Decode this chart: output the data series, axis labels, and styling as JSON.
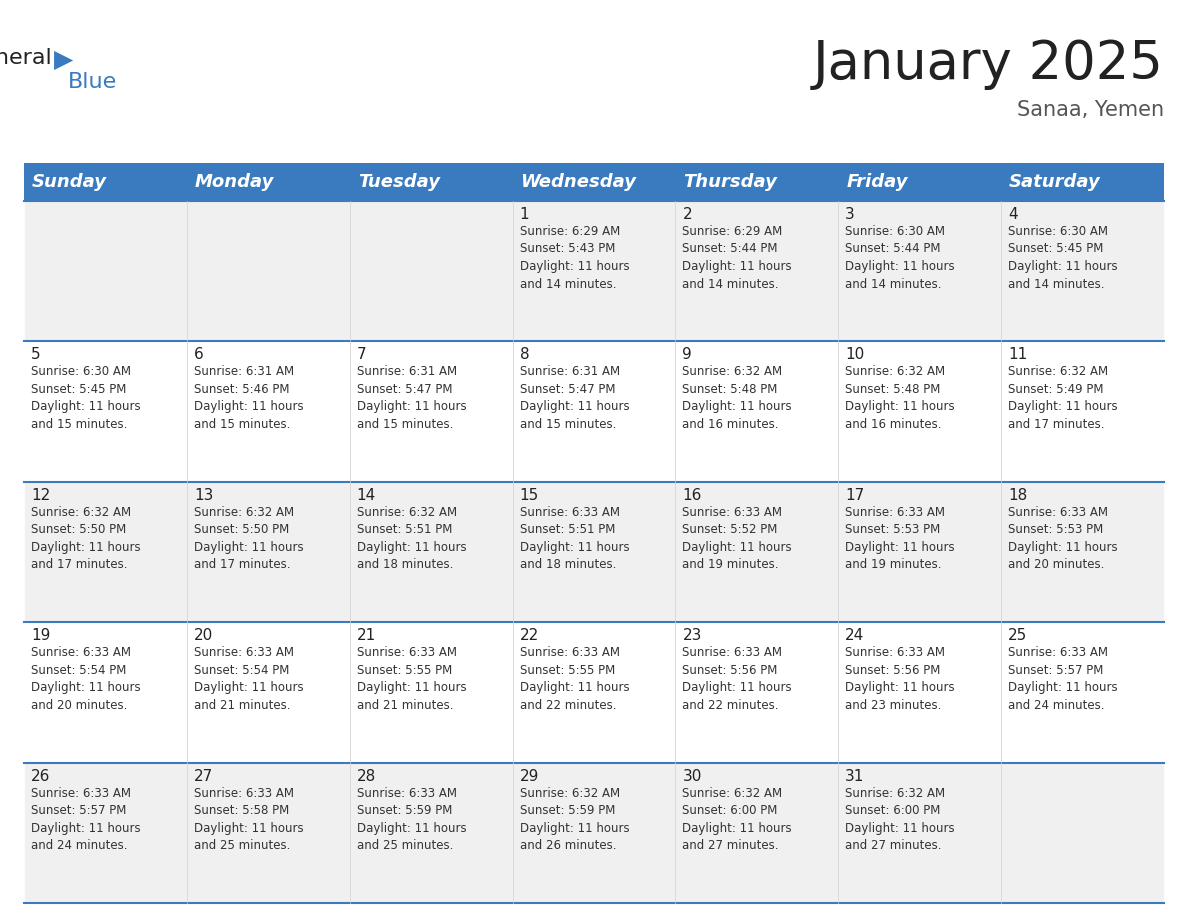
{
  "title": "January 2025",
  "subtitle": "Sanaa, Yemen",
  "header_color": "#3a7abf",
  "header_text_color": "#ffffff",
  "cell_bg_even": "#f0f0f0",
  "cell_bg_odd": "#ffffff",
  "border_color": "#3a7abf",
  "text_color": "#222222",
  "info_color": "#333333",
  "day_names": [
    "Sunday",
    "Monday",
    "Tuesday",
    "Wednesday",
    "Thursday",
    "Friday",
    "Saturday"
  ],
  "title_fontsize": 38,
  "subtitle_fontsize": 15,
  "header_fontsize": 13,
  "cell_fontsize": 8.5,
  "day_num_fontsize": 11,
  "logo_general_fontsize": 16,
  "logo_blue_fontsize": 16,
  "weeks": [
    [
      {
        "day": null,
        "info": null
      },
      {
        "day": null,
        "info": null
      },
      {
        "day": null,
        "info": null
      },
      {
        "day": 1,
        "info": "Sunrise: 6:29 AM\nSunset: 5:43 PM\nDaylight: 11 hours\nand 14 minutes."
      },
      {
        "day": 2,
        "info": "Sunrise: 6:29 AM\nSunset: 5:44 PM\nDaylight: 11 hours\nand 14 minutes."
      },
      {
        "day": 3,
        "info": "Sunrise: 6:30 AM\nSunset: 5:44 PM\nDaylight: 11 hours\nand 14 minutes."
      },
      {
        "day": 4,
        "info": "Sunrise: 6:30 AM\nSunset: 5:45 PM\nDaylight: 11 hours\nand 14 minutes."
      }
    ],
    [
      {
        "day": 5,
        "info": "Sunrise: 6:30 AM\nSunset: 5:45 PM\nDaylight: 11 hours\nand 15 minutes."
      },
      {
        "day": 6,
        "info": "Sunrise: 6:31 AM\nSunset: 5:46 PM\nDaylight: 11 hours\nand 15 minutes."
      },
      {
        "day": 7,
        "info": "Sunrise: 6:31 AM\nSunset: 5:47 PM\nDaylight: 11 hours\nand 15 minutes."
      },
      {
        "day": 8,
        "info": "Sunrise: 6:31 AM\nSunset: 5:47 PM\nDaylight: 11 hours\nand 15 minutes."
      },
      {
        "day": 9,
        "info": "Sunrise: 6:32 AM\nSunset: 5:48 PM\nDaylight: 11 hours\nand 16 minutes."
      },
      {
        "day": 10,
        "info": "Sunrise: 6:32 AM\nSunset: 5:48 PM\nDaylight: 11 hours\nand 16 minutes."
      },
      {
        "day": 11,
        "info": "Sunrise: 6:32 AM\nSunset: 5:49 PM\nDaylight: 11 hours\nand 17 minutes."
      }
    ],
    [
      {
        "day": 12,
        "info": "Sunrise: 6:32 AM\nSunset: 5:50 PM\nDaylight: 11 hours\nand 17 minutes."
      },
      {
        "day": 13,
        "info": "Sunrise: 6:32 AM\nSunset: 5:50 PM\nDaylight: 11 hours\nand 17 minutes."
      },
      {
        "day": 14,
        "info": "Sunrise: 6:32 AM\nSunset: 5:51 PM\nDaylight: 11 hours\nand 18 minutes."
      },
      {
        "day": 15,
        "info": "Sunrise: 6:33 AM\nSunset: 5:51 PM\nDaylight: 11 hours\nand 18 minutes."
      },
      {
        "day": 16,
        "info": "Sunrise: 6:33 AM\nSunset: 5:52 PM\nDaylight: 11 hours\nand 19 minutes."
      },
      {
        "day": 17,
        "info": "Sunrise: 6:33 AM\nSunset: 5:53 PM\nDaylight: 11 hours\nand 19 minutes."
      },
      {
        "day": 18,
        "info": "Sunrise: 6:33 AM\nSunset: 5:53 PM\nDaylight: 11 hours\nand 20 minutes."
      }
    ],
    [
      {
        "day": 19,
        "info": "Sunrise: 6:33 AM\nSunset: 5:54 PM\nDaylight: 11 hours\nand 20 minutes."
      },
      {
        "day": 20,
        "info": "Sunrise: 6:33 AM\nSunset: 5:54 PM\nDaylight: 11 hours\nand 21 minutes."
      },
      {
        "day": 21,
        "info": "Sunrise: 6:33 AM\nSunset: 5:55 PM\nDaylight: 11 hours\nand 21 minutes."
      },
      {
        "day": 22,
        "info": "Sunrise: 6:33 AM\nSunset: 5:55 PM\nDaylight: 11 hours\nand 22 minutes."
      },
      {
        "day": 23,
        "info": "Sunrise: 6:33 AM\nSunset: 5:56 PM\nDaylight: 11 hours\nand 22 minutes."
      },
      {
        "day": 24,
        "info": "Sunrise: 6:33 AM\nSunset: 5:56 PM\nDaylight: 11 hours\nand 23 minutes."
      },
      {
        "day": 25,
        "info": "Sunrise: 6:33 AM\nSunset: 5:57 PM\nDaylight: 11 hours\nand 24 minutes."
      }
    ],
    [
      {
        "day": 26,
        "info": "Sunrise: 6:33 AM\nSunset: 5:57 PM\nDaylight: 11 hours\nand 24 minutes."
      },
      {
        "day": 27,
        "info": "Sunrise: 6:33 AM\nSunset: 5:58 PM\nDaylight: 11 hours\nand 25 minutes."
      },
      {
        "day": 28,
        "info": "Sunrise: 6:33 AM\nSunset: 5:59 PM\nDaylight: 11 hours\nand 25 minutes."
      },
      {
        "day": 29,
        "info": "Sunrise: 6:32 AM\nSunset: 5:59 PM\nDaylight: 11 hours\nand 26 minutes."
      },
      {
        "day": 30,
        "info": "Sunrise: 6:32 AM\nSunset: 6:00 PM\nDaylight: 11 hours\nand 27 minutes."
      },
      {
        "day": 31,
        "info": "Sunrise: 6:32 AM\nSunset: 6:00 PM\nDaylight: 11 hours\nand 27 minutes."
      },
      {
        "day": null,
        "info": null
      }
    ]
  ]
}
